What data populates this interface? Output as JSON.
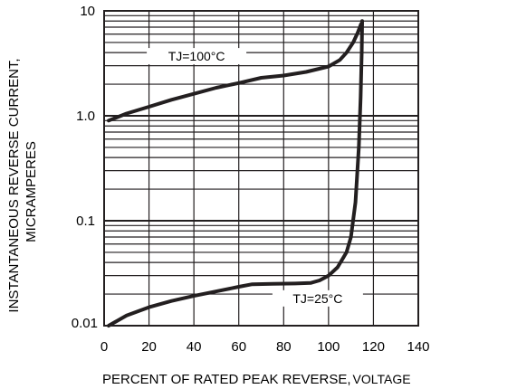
{
  "chart_data": {
    "type": "line",
    "title": "",
    "xlabel": "PERCENT OF RATED PEAK REVERSE, VOLTAGE",
    "xlabel_parts": [
      "PERCENT OF RATED PEAK REVERSE,",
      "VOLTAGE"
    ],
    "ylabel": "INSTANTANEOUS REVERSE CURRENT, MICRAMPERES",
    "ylabel_lines": [
      "INSTANTANEOUS REVERSE CURRENT,",
      "MICRAMPERES"
    ],
    "xlim": [
      0,
      140
    ],
    "ylim": [
      0.01,
      10
    ],
    "yscale": "log",
    "x_ticks": [
      0,
      20,
      40,
      60,
      80,
      100,
      120,
      140
    ],
    "x_tick_labels": [
      "0",
      "20",
      "40",
      "60",
      "80",
      "100",
      "120",
      "140"
    ],
    "y_ticks": [
      0.01,
      0.1,
      1.0,
      10
    ],
    "y_tick_labels": [
      "0.01",
      "0.1",
      "1.0",
      "10"
    ],
    "grid": true,
    "colors": {
      "curve": "#231f20",
      "grid": "#231f20",
      "background": "#ffffff"
    },
    "series": [
      {
        "annotation": "TJ=100°C",
        "x": [
          2,
          10,
          20,
          30,
          40,
          50,
          60,
          70,
          80,
          90,
          100,
          105,
          108,
          111,
          113,
          114.5
        ],
        "y": [
          0.9,
          1.05,
          1.22,
          1.42,
          1.62,
          1.85,
          2.05,
          2.3,
          2.42,
          2.62,
          2.95,
          3.4,
          4.0,
          5.0,
          6.2,
          7.5
        ]
      },
      {
        "annotation": "TJ=25°C",
        "x": [
          2,
          10,
          20,
          30,
          40,
          50,
          60,
          66,
          75,
          85,
          92,
          96,
          100,
          104,
          108,
          110,
          112,
          113.5,
          114.3,
          114.8,
          115
        ],
        "y": [
          0.01,
          0.0125,
          0.015,
          0.0172,
          0.0192,
          0.0212,
          0.0235,
          0.0248,
          0.025,
          0.0252,
          0.0255,
          0.027,
          0.03,
          0.036,
          0.05,
          0.07,
          0.15,
          0.5,
          1.5,
          4.0,
          8.0
        ]
      }
    ]
  }
}
